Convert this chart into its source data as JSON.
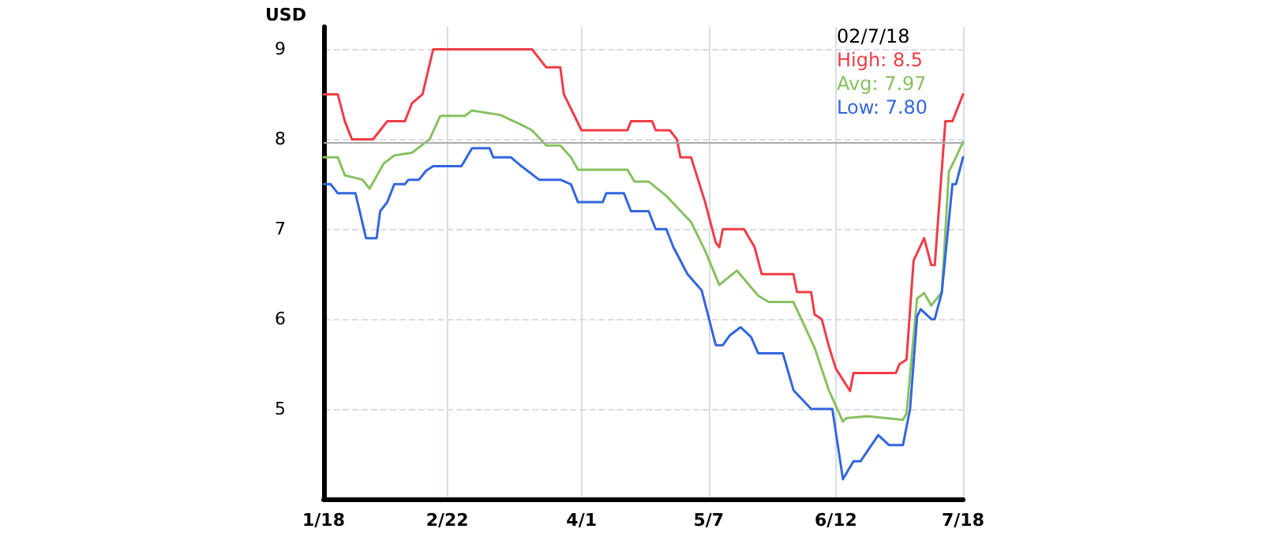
{
  "chart_data": {
    "type": "line",
    "ylabel": "USD",
    "xlim": [
      "--01-18",
      "--07-18"
    ],
    "xticks": [
      {
        "value": "--01-18",
        "label": "1/18"
      },
      {
        "value": "--02-22",
        "label": "2/22"
      },
      {
        "value": "--04-01",
        "label": "4/1"
      },
      {
        "value": "--05-07",
        "label": "5/7"
      },
      {
        "value": "--06-12",
        "label": "6/12"
      },
      {
        "value": "--07-18",
        "label": "7/18"
      }
    ],
    "ylim": [
      4,
      9.25
    ],
    "yticks": [
      5,
      6,
      7,
      8,
      9
    ],
    "grid": true,
    "marker": "none",
    "line_style": "solid",
    "annotations": [
      "02/7/18",
      "High: 8.5",
      "Avg: 7.97",
      "Low: 7.80"
    ],
    "ref_lines": [
      {
        "axis": "y",
        "value": 7.97,
        "color": "#aaaaaa"
      }
    ],
    "series": [
      {
        "color": "#f03c46",
        "x": [
          "--01-18",
          "--01-22",
          "--01-24",
          "--01-26",
          "--02-01",
          "--02-03",
          "--02-05",
          "--02-10",
          "--02-12",
          "--02-15",
          "--02-18",
          "--03-18",
          "--03-20",
          "--03-22",
          "--03-26",
          "--03-27",
          "--04-01",
          "--04-14",
          "--04-15",
          "--04-21",
          "--04-22",
          "--04-26",
          "--04-28",
          "--04-29",
          "--05-02",
          "--05-06",
          "--05-09",
          "--05-10",
          "--05-11",
          "--05-17",
          "--05-20",
          "--05-22",
          "--05-31",
          "--06-01",
          "--06-05",
          "--06-06",
          "--06-08",
          "--06-10",
          "--06-12",
          "--06-16",
          "--06-17",
          "--06-29",
          "--06-30",
          "--07-02",
          "--07-04",
          "--07-07",
          "--07-09",
          "--07-10",
          "--07-13",
          "--07-15",
          "--07-18"
        ],
        "values": [
          8.5,
          8.5,
          8.2,
          8.0,
          8.0,
          8.1,
          8.2,
          8.2,
          8.4,
          8.5,
          9.0,
          9.0,
          8.9,
          8.8,
          8.8,
          8.5,
          8.1,
          8.1,
          8.2,
          8.2,
          8.1,
          8.1,
          8.0,
          7.8,
          7.8,
          7.3,
          6.85,
          6.8,
          7.0,
          7.0,
          6.8,
          6.5,
          6.5,
          6.3,
          6.3,
          6.05,
          6.0,
          5.7,
          5.45,
          5.2,
          5.4,
          5.4,
          5.5,
          5.55,
          6.65,
          6.9,
          6.6,
          6.6,
          8.2,
          8.2,
          8.5
        ]
      },
      {
        "color": "#88c060",
        "x": [
          "--01-18",
          "--01-22",
          "--01-24",
          "--01-29",
          "--01-31",
          "--02-04",
          "--02-07",
          "--02-12",
          "--02-17",
          "--02-20",
          "--02-27",
          "--03-01",
          "--03-09",
          "--03-15",
          "--03-18",
          "--03-22",
          "--03-26",
          "--03-29",
          "--03-31",
          "--04-14",
          "--04-16",
          "--04-20",
          "--04-25",
          "--05-02",
          "--05-06",
          "--05-10",
          "--05-15",
          "--05-21",
          "--05-24",
          "--05-31",
          "--06-06",
          "--06-10",
          "--06-14",
          "--06-15",
          "--06-21",
          "--07-01",
          "--07-02",
          "--07-05",
          "--07-07",
          "--07-09",
          "--07-12",
          "--07-14",
          "--07-16",
          "--07-18"
        ],
        "values": [
          7.8,
          7.8,
          7.6,
          7.55,
          7.45,
          7.73,
          7.82,
          7.85,
          8.0,
          8.26,
          8.26,
          8.32,
          8.27,
          8.16,
          8.1,
          7.93,
          7.93,
          7.8,
          7.66,
          7.66,
          7.53,
          7.53,
          7.37,
          7.08,
          6.76,
          6.38,
          6.54,
          6.26,
          6.19,
          6.19,
          5.68,
          5.21,
          4.86,
          4.9,
          4.92,
          4.88,
          4.95,
          6.23,
          6.29,
          6.15,
          6.3,
          7.64,
          7.8,
          7.97
        ]
      },
      {
        "color": "#3366dd",
        "x": [
          "--01-18",
          "--01-20",
          "--01-22",
          "--01-27",
          "--01-30",
          "--02-02",
          "--02-03",
          "--02-05",
          "--02-07",
          "--02-10",
          "--02-11",
          "--02-14",
          "--02-16",
          "--02-18",
          "--02-26",
          "--03-01",
          "--03-06",
          "--03-07",
          "--03-12",
          "--03-15",
          "--03-20",
          "--03-26",
          "--03-29",
          "--03-31",
          "--04-07",
          "--04-08",
          "--04-13",
          "--04-15",
          "--04-20",
          "--04-22",
          "--04-25",
          "--04-27",
          "--05-01",
          "--05-05",
          "--05-09",
          "--05-11",
          "--05-13",
          "--05-16",
          "--05-19",
          "--05-21",
          "--05-28",
          "--05-31",
          "--06-05",
          "--06-11",
          "--06-14",
          "--06-17",
          "--06-19",
          "--06-24",
          "--06-27",
          "--07-01",
          "--07-03",
          "--07-05",
          "--07-06",
          "--07-09",
          "--07-10",
          "--07-12",
          "--07-15",
          "--07-16",
          "--07-18"
        ],
        "values": [
          7.5,
          7.5,
          7.4,
          7.4,
          6.9,
          6.9,
          7.2,
          7.3,
          7.5,
          7.5,
          7.55,
          7.55,
          7.65,
          7.7,
          7.7,
          7.9,
          7.9,
          7.8,
          7.8,
          7.7,
          7.55,
          7.55,
          7.5,
          7.3,
          7.3,
          7.4,
          7.4,
          7.2,
          7.2,
          7.0,
          7.0,
          6.8,
          6.5,
          6.32,
          5.71,
          5.71,
          5.82,
          5.91,
          5.8,
          5.62,
          5.62,
          5.21,
          5.0,
          5.0,
          4.22,
          4.42,
          4.42,
          4.71,
          4.6,
          4.6,
          5.0,
          6.03,
          6.11,
          6.0,
          6.0,
          6.3,
          7.5,
          7.5,
          7.8
        ]
      }
    ]
  }
}
